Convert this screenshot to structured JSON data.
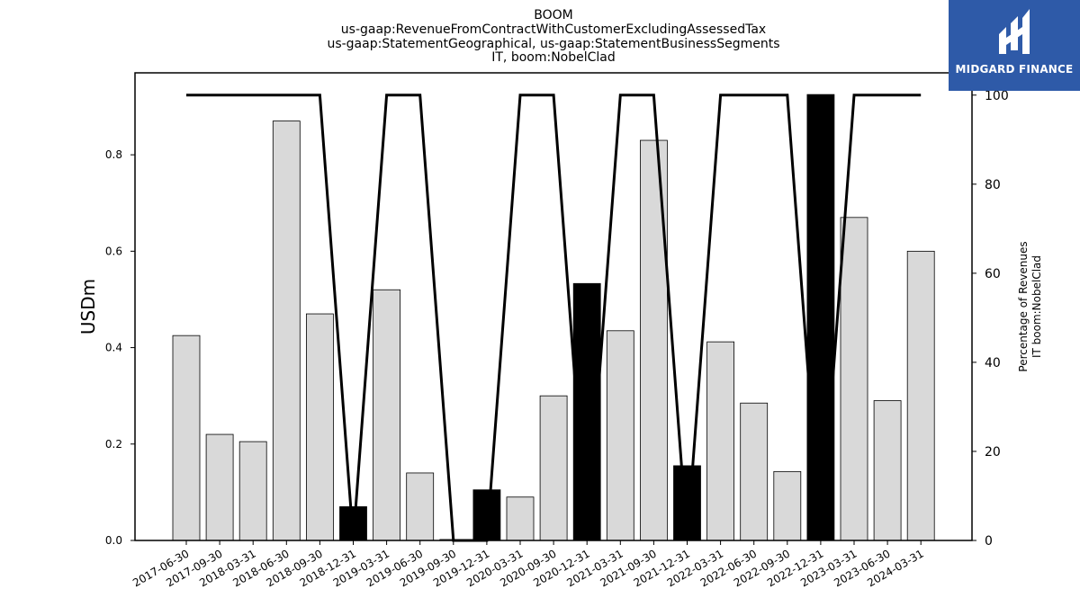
{
  "chart_data": {
    "type": "bar",
    "title_lines": [
      "BOOM",
      "us-gaap:RevenueFromContractWithCustomerExcludingAssessedTax",
      "us-gaap:StatementGeographical, us-gaap:StatementBusinessSegments",
      "IT, boom:NobelClad"
    ],
    "ylabel": "USDm",
    "y2label_lines": [
      "Percentage of Revenues",
      "IT boom:NobelClad"
    ],
    "ylim": [
      0,
      0.97
    ],
    "y2lim": [
      0,
      105
    ],
    "yticks": [
      "0.0",
      "0.2",
      "0.4",
      "0.6",
      "0.8"
    ],
    "y2ticks": [
      "0",
      "20",
      "40",
      "60",
      "80",
      "100"
    ],
    "categories": [
      "2017-06-30",
      "2017-09-30",
      "2018-03-31",
      "2018-06-30",
      "2018-09-30",
      "2018-12-31",
      "2019-03-31",
      "2019-06-30",
      "2019-09-30",
      "2019-12-31",
      "2020-03-31",
      "2020-09-30",
      "2020-12-31",
      "2021-03-31",
      "2021-09-30",
      "2021-12-31",
      "2022-03-31",
      "2022-06-30",
      "2022-09-30",
      "2022-12-31",
      "2023-03-31",
      "2023-06-30",
      "2024-03-31"
    ],
    "series": [
      {
        "values": [
          0.425,
          0.22,
          0.205,
          0.87,
          0.47,
          0.07,
          0.52,
          0.14,
          0.002,
          0.105,
          0.09,
          0.3,
          0.533,
          0.435,
          0.83,
          0.155,
          0.412,
          0.285,
          0.143,
          0.925,
          0.67,
          0.29,
          0.6
        ],
        "highlighted": [
          false,
          false,
          false,
          false,
          false,
          true,
          false,
          false,
          false,
          true,
          false,
          false,
          true,
          false,
          false,
          true,
          false,
          false,
          false,
          true,
          false,
          false,
          false
        ],
        "colors": {
          "normal": "#d9d9d9",
          "highlight": "#000000",
          "edge": "#000000"
        }
      },
      {
        "values": [
          100,
          100,
          100,
          100,
          100,
          0,
          100,
          100,
          0,
          0,
          100,
          100,
          0,
          100,
          100,
          0,
          100,
          100,
          100,
          0,
          100,
          100,
          100
        ],
        "axis": "right",
        "color": "#000000"
      }
    ],
    "grid": false
  },
  "logo": {
    "text": "MIDGARD FINANCE",
    "bg_color": "#2e5aa8"
  }
}
